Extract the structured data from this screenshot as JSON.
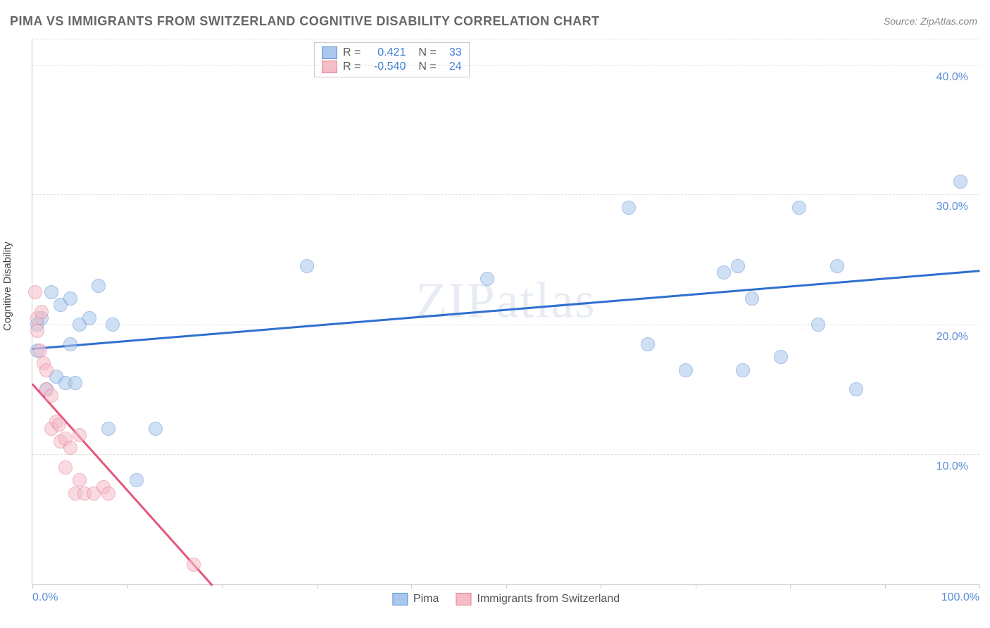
{
  "title": "PIMA VS IMMIGRANTS FROM SWITZERLAND COGNITIVE DISABILITY CORRELATION CHART",
  "source_prefix": "Source: ",
  "source_name": "ZipAtlas.com",
  "y_axis_label": "Cognitive Disability",
  "watermark": "ZIPatlas",
  "chart": {
    "type": "scatter",
    "background_color": "#ffffff",
    "grid_color": "#dddddd",
    "axis_color": "#cccccc",
    "tick_label_color": "#5a8fd6",
    "xlim": [
      0,
      100
    ],
    "ylim": [
      0,
      42
    ],
    "y_ticks": [
      10,
      20,
      30,
      40
    ],
    "y_tick_labels": [
      "10.0%",
      "20.0%",
      "30.0%",
      "40.0%"
    ],
    "x_ticks": [
      0,
      10,
      20,
      30,
      40,
      50,
      60,
      70,
      80,
      90,
      100
    ],
    "x_tick_labels_shown": {
      "0": "0.0%",
      "100": "100.0%"
    },
    "marker_radius": 9,
    "marker_opacity": 0.55,
    "series": [
      {
        "name": "Pima",
        "color_fill": "#a9c8ec",
        "color_stroke": "#5a8fd6",
        "R": "0.421",
        "N": "33",
        "trend": {
          "x1": 0,
          "y1": 18.2,
          "x2": 100,
          "y2": 24.2,
          "color": "#2f6fd0",
          "width": 2.5
        },
        "points": [
          [
            0.5,
            20.0
          ],
          [
            0.5,
            18.0
          ],
          [
            1.0,
            20.5
          ],
          [
            1.5,
            15.0
          ],
          [
            2.0,
            22.5
          ],
          [
            2.5,
            16.0
          ],
          [
            3.0,
            21.5
          ],
          [
            3.5,
            15.5
          ],
          [
            4.0,
            22.0
          ],
          [
            4.0,
            18.5
          ],
          [
            4.5,
            15.5
          ],
          [
            5.0,
            20.0
          ],
          [
            6.0,
            20.5
          ],
          [
            7.0,
            23.0
          ],
          [
            8.0,
            12.0
          ],
          [
            8.5,
            20.0
          ],
          [
            11.0,
            8.0
          ],
          [
            13.0,
            12.0
          ],
          [
            29.0,
            24.5
          ],
          [
            48.0,
            23.5
          ],
          [
            63.0,
            29.0
          ],
          [
            65.0,
            18.5
          ],
          [
            69.0,
            16.5
          ],
          [
            73.0,
            24.0
          ],
          [
            74.5,
            24.5
          ],
          [
            75.0,
            16.5
          ],
          [
            76.0,
            22.0
          ],
          [
            79.0,
            17.5
          ],
          [
            81.0,
            29.0
          ],
          [
            83.0,
            20.0
          ],
          [
            85.0,
            24.5
          ],
          [
            87.0,
            15.0
          ],
          [
            98.0,
            31.0
          ]
        ]
      },
      {
        "name": "Immigrants from Switzerland",
        "color_fill": "#f5bcc8",
        "color_stroke": "#e77a95",
        "R": "-0.540",
        "N": "24",
        "trend": {
          "x1": 0,
          "y1": 15.5,
          "x2": 19,
          "y2": 0,
          "color": "#e7557a",
          "width": 2.5
        },
        "points": [
          [
            0.3,
            22.5
          ],
          [
            0.5,
            19.5
          ],
          [
            0.5,
            20.5
          ],
          [
            0.8,
            18.0
          ],
          [
            1.0,
            21.0
          ],
          [
            1.2,
            17.0
          ],
          [
            1.5,
            15.0
          ],
          [
            1.5,
            16.5
          ],
          [
            2.0,
            14.5
          ],
          [
            2.5,
            12.5
          ],
          [
            2.0,
            12.0
          ],
          [
            2.8,
            12.3
          ],
          [
            3.0,
            11.0
          ],
          [
            3.5,
            11.2
          ],
          [
            3.5,
            9.0
          ],
          [
            4.0,
            10.5
          ],
          [
            4.5,
            7.0
          ],
          [
            5.0,
            8.0
          ],
          [
            5.5,
            7.0
          ],
          [
            5.0,
            11.5
          ],
          [
            6.5,
            7.0
          ],
          [
            7.5,
            7.5
          ],
          [
            8.0,
            7.0
          ],
          [
            17.0,
            1.5
          ]
        ]
      }
    ]
  },
  "stats_box": {
    "r_label": "R =",
    "n_label": "N ="
  },
  "bottom_legend": {
    "items": [
      "Pima",
      "Immigrants from Switzerland"
    ]
  }
}
